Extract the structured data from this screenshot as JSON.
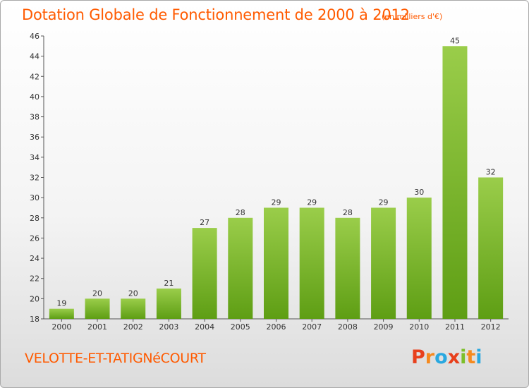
{
  "header": {
    "title": "Dotation Globale de Fonctionnement de 2000 à 2012",
    "unit_note": "(en milliers d'€)"
  },
  "footer": {
    "commune": "VELOTTE-ET-TATIGNéCOURT",
    "logo_letters": [
      "P",
      "r",
      "o",
      "x",
      "i",
      "t",
      "i"
    ]
  },
  "colors": {
    "text_accent": "#ff5a00",
    "bar_top": "#9acd4a",
    "bar_bottom": "#5e9e14",
    "logo": [
      "#e8401c",
      "#f58a1f",
      "#29a8e0",
      "#e8401c",
      "#7cbf2a",
      "#f58a1f",
      "#29a8e0"
    ]
  },
  "chart_data": {
    "type": "bar",
    "title": "Dotation Globale de Fonctionnement de 2000 à 2012",
    "subtitle": "(en milliers d'€)",
    "categories": [
      "2000",
      "2001",
      "2002",
      "2003",
      "2004",
      "2005",
      "2006",
      "2007",
      "2008",
      "2009",
      "2010",
      "2011",
      "2012"
    ],
    "values": [
      19,
      20,
      20,
      21,
      27,
      28,
      29,
      29,
      28,
      29,
      30,
      45,
      32
    ],
    "ylim": [
      18,
      46
    ],
    "yticks": [
      18,
      20,
      22,
      24,
      26,
      28,
      30,
      32,
      34,
      36,
      38,
      40,
      42,
      44,
      46
    ],
    "grid": false,
    "data_labels": true
  }
}
